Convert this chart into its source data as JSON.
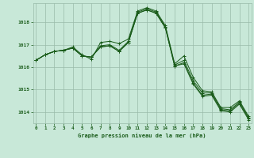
{
  "title": "Graphe pression niveau de la mer (hPa)",
  "background_color": "#c8e8d8",
  "grid_color": "#99bbaa",
  "line_color": "#1a5c1a",
  "x_labels": [
    "0",
    "1",
    "2",
    "3",
    "4",
    "5",
    "6",
    "7",
    "8",
    "9",
    "10",
    "11",
    "12",
    "13",
    "14",
    "15",
    "16",
    "17",
    "18",
    "19",
    "20",
    "21",
    "22",
    "23"
  ],
  "ylim": [
    1013.5,
    1018.85
  ],
  "yticks": [
    1014,
    1015,
    1016,
    1017,
    1018
  ],
  "series": [
    [
      1016.3,
      1016.55,
      1016.7,
      1016.75,
      1016.9,
      1016.55,
      1016.35,
      1017.1,
      1017.15,
      1017.05,
      1017.25,
      1018.5,
      1018.65,
      1018.5,
      1017.85,
      1016.15,
      1016.5,
      1015.55,
      1014.95,
      1014.9,
      1014.2,
      1014.2,
      1014.5,
      1013.8
    ],
    [
      1016.3,
      1016.55,
      1016.7,
      1016.75,
      1016.85,
      1016.5,
      1016.45,
      1016.95,
      1017.0,
      1016.75,
      1017.15,
      1018.45,
      1018.6,
      1018.45,
      1017.8,
      1016.1,
      1016.3,
      1015.4,
      1014.85,
      1014.85,
      1014.15,
      1014.1,
      1014.45,
      1013.75
    ],
    [
      1016.3,
      1016.55,
      1016.7,
      1016.75,
      1016.85,
      1016.5,
      1016.45,
      1016.9,
      1016.95,
      1016.7,
      1017.1,
      1018.4,
      1018.55,
      1018.4,
      1017.75,
      1016.05,
      1016.2,
      1015.3,
      1014.75,
      1014.8,
      1014.1,
      1014.05,
      1014.4,
      1013.7
    ],
    [
      1016.3,
      1016.55,
      1016.7,
      1016.75,
      1016.85,
      1016.5,
      1016.45,
      1016.9,
      1016.95,
      1016.7,
      1017.1,
      1018.4,
      1018.55,
      1018.4,
      1017.75,
      1016.05,
      1016.15,
      1015.25,
      1014.7,
      1014.75,
      1014.05,
      1014.0,
      1014.35,
      1013.65
    ]
  ]
}
